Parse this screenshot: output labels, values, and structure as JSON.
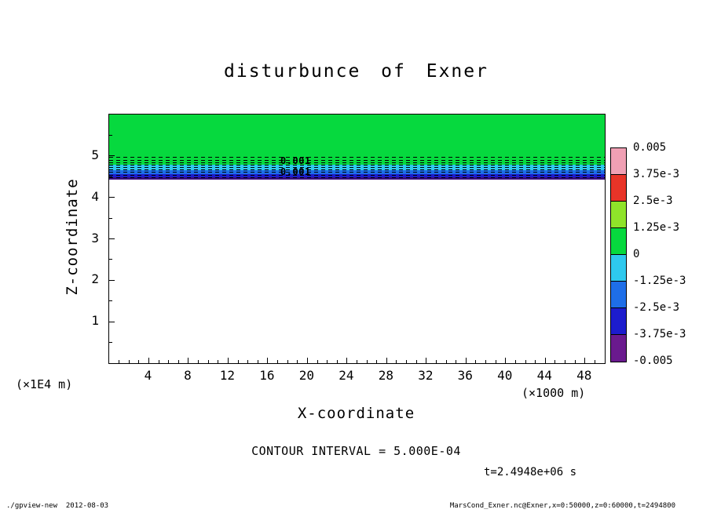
{
  "title": "disturbunce of Exner",
  "axes": {
    "x": {
      "label": "X-coordinate",
      "unit": "(×1000 m)"
    },
    "y": {
      "label": "Z-coordinate",
      "unit": "(×1E4 m)"
    }
  },
  "annotations": {
    "contour_interval": "CONTOUR INTERVAL = 5.000E-04",
    "time": "t=2.4948e+06 s",
    "contour_labels": [
      "0.001",
      "0.001"
    ]
  },
  "colorbar": {
    "tick_labels": [
      "0.005",
      "3.75e-3",
      "2.5e-3",
      "1.25e-3",
      "0",
      "-1.25e-3",
      "-2.5e-3",
      "-3.75e-3",
      "-0.005"
    ],
    "colors": [
      "#f0a0b4",
      "#e83428",
      "#8fe32a",
      "#06d93e",
      "#2ec9ee",
      "#1e6ee8",
      "#1c1ccd",
      "#6a1a8e"
    ]
  },
  "footer": {
    "left": "./gpview-new  2012-08-03",
    "right": "MarsCond_Exner.nc@Exner,x=0:50000,z=0:60000,t=2494800"
  },
  "chart_data": {
    "type": "heatmap",
    "title": "disturbunce of Exner",
    "xlabel": "X-coordinate",
    "x_unit_note": "(×1000 m)",
    "ylabel": "Z-coordinate",
    "y_unit_note": "(×1E4 m)",
    "xlim": [
      0,
      50
    ],
    "ylim": [
      0,
      6
    ],
    "x_ticks": [
      4,
      8,
      12,
      16,
      20,
      24,
      28,
      32,
      36,
      40,
      44,
      48
    ],
    "y_ticks": [
      1,
      2,
      3,
      4,
      5
    ],
    "grid": false,
    "legend_position": "right",
    "contour_interval": 0.0005,
    "time_seconds": 2494800,
    "colorbar_levels": [
      0.005,
      0.00375,
      0.0025,
      0.00125,
      0,
      -0.00125,
      -0.0025,
      -0.00375,
      -0.005
    ],
    "bands": [
      {
        "z_from": 4.78,
        "z_to": 6.0,
        "approx_value": "0 to +1.25e-3",
        "color": "#06d93e"
      },
      {
        "z_from": 4.66,
        "z_to": 4.78,
        "approx_value": "0 to -1.25e-3",
        "color": "#2ec9ee"
      },
      {
        "z_from": 4.56,
        "z_to": 4.66,
        "approx_value": "-1.25e-3 to -2.5e-3",
        "color": "#1e6ee8"
      },
      {
        "z_from": 4.48,
        "z_to": 4.56,
        "approx_value": "-2.5e-3 to -3.75e-3",
        "color": "#1c1ccd"
      },
      {
        "z_from": 4.43,
        "z_to": 4.48,
        "approx_value": "-3.75e-3 to -0.005",
        "color": "#3a1080"
      },
      {
        "z_from": 0.0,
        "z_to": 4.43,
        "approx_value": "0 (undisturbed)",
        "color": "#ffffff"
      }
    ],
    "contour_line_z": [
      4.96,
      4.9,
      4.84,
      4.78,
      4.72,
      4.66,
      4.6,
      4.54,
      4.48
    ]
  }
}
